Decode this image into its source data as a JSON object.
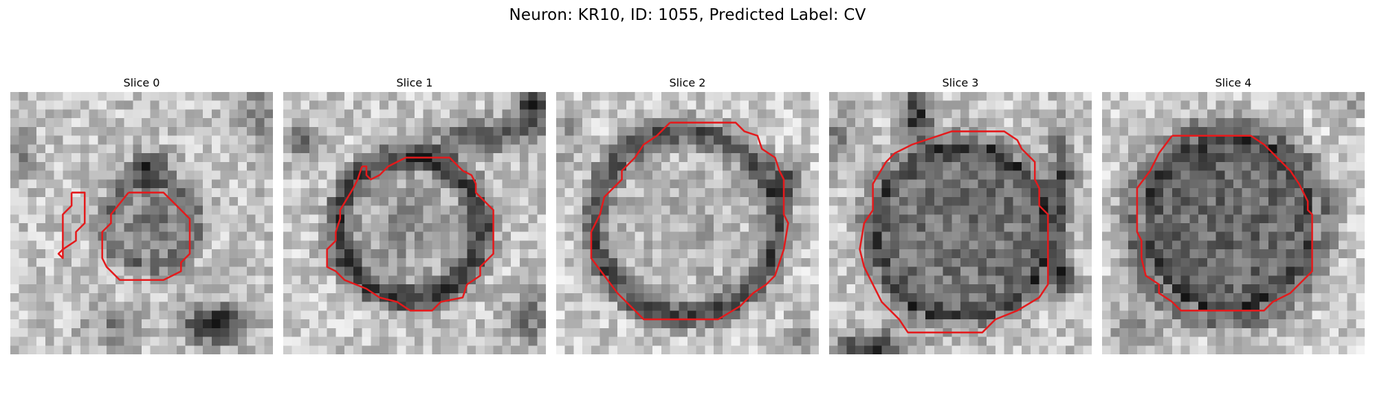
{
  "figure": {
    "title": "Neuron: KR10, ID: 1055, Predicted Label: CV"
  },
  "slices": [
    {
      "title": "Slice 0"
    },
    {
      "title": "Slice 1"
    },
    {
      "title": "Slice 2"
    },
    {
      "title": "Slice 3"
    },
    {
      "title": "Slice 4"
    }
  ],
  "colors": {
    "contour": "#e41a1c",
    "background": "#ffffff",
    "colormap": "grayscale"
  }
}
